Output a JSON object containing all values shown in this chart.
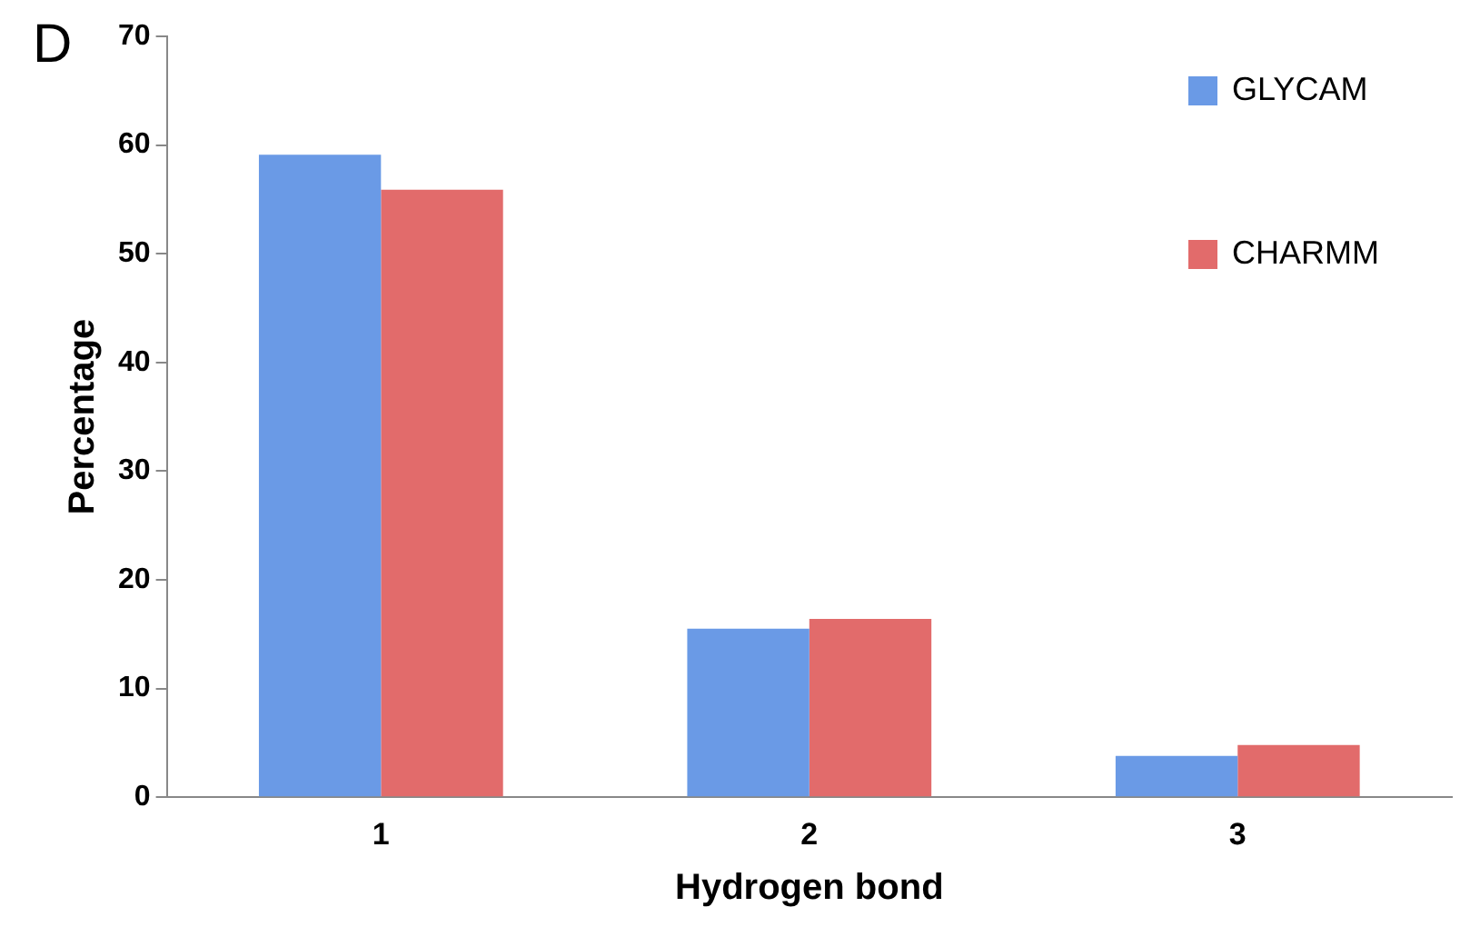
{
  "chart_data": {
    "type": "bar",
    "xlabel": "Hydrogen bond",
    "ylabel": "Percentage",
    "annotations": [
      "D"
    ],
    "categories": [
      "1",
      "2",
      "3"
    ],
    "series": [
      {
        "name": "GLYCAM",
        "color": "#6a9ae6",
        "values": [
          59.1,
          15.5,
          3.8
        ]
      },
      {
        "name": "CHARMM",
        "color": "#e26b6b",
        "values": [
          55.9,
          16.4,
          4.8
        ]
      }
    ],
    "ylim": [
      0,
      70
    ],
    "yticks": [
      0,
      10,
      20,
      30,
      40,
      50,
      60,
      70
    ],
    "grid": false,
    "legend": "top right"
  }
}
